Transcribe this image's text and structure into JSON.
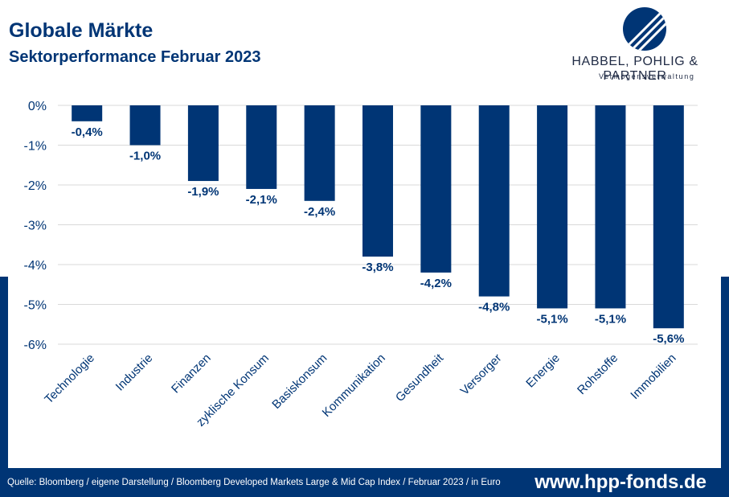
{
  "header": {
    "title": "Globale Märkte",
    "subtitle": "Sektorperformance Februar 2023"
  },
  "logo": {
    "name": "HABBEL, POHLIG & PARTNER",
    "tagline": "Vermögensverwaltung"
  },
  "footer": {
    "source": "Quelle: Bloomberg / eigene Darstellung / Bloomberg Developed Markets Large & Mid Cap Index / Februar 2023 / in Euro",
    "website": "www.hpp-fonds.de"
  },
  "colors": {
    "bar": "#003575",
    "brand": "#003575",
    "grid": "#d9d9d9",
    "label": "#003575"
  },
  "chart_data": {
    "type": "bar",
    "categories": [
      "Technologie",
      "Industrie",
      "Finanzen",
      "zyklische Konsum",
      "Basiskonsum",
      "Kommunikation",
      "Gesundheit",
      "Versorger",
      "Energie",
      "Rohstoffe",
      "Immobilien"
    ],
    "values": [
      -0.4,
      -1.0,
      -1.9,
      -2.1,
      -2.4,
      -3.8,
      -4.2,
      -4.8,
      -5.1,
      -5.1,
      -5.6
    ],
    "data_labels": [
      "-0,4%",
      "-1,0%",
      "-1,9%",
      "-2,1%",
      "-2,4%",
      "-3,8%",
      "-4,2%",
      "-4,8%",
      "-5,1%",
      "-5,1%",
      "-5,6%"
    ],
    "y_ticks": [
      0,
      -1,
      -2,
      -3,
      -4,
      -5,
      -6
    ],
    "y_tick_labels": [
      "0%",
      "-1%",
      "-2%",
      "-3%",
      "-4%",
      "-5%",
      "-6%"
    ],
    "ylim": [
      -6,
      0
    ],
    "grid": true,
    "legend": "none"
  }
}
